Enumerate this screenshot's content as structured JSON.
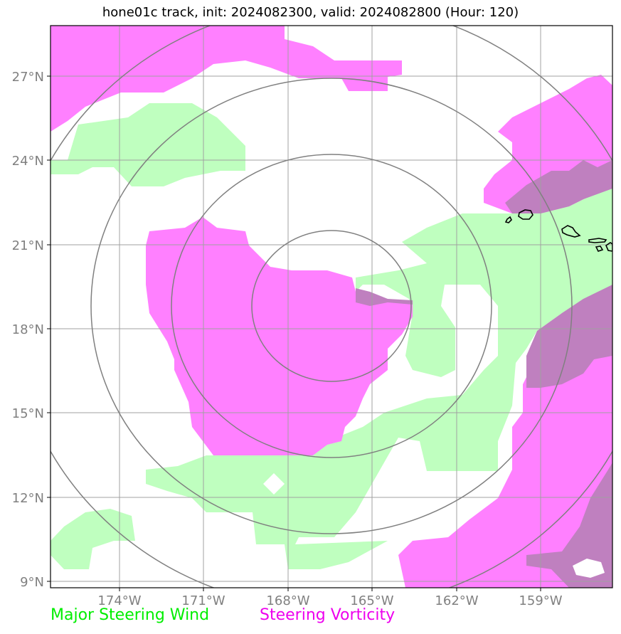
{
  "title": "hone01c track, init: 2024082300, valid: 2024082800 (Hour: 120)",
  "map": {
    "lon_range": [
      -176.4,
      -156.4
    ],
    "lat_range": [
      8.8,
      28.8
    ],
    "lon_ticks": [
      -174,
      -171,
      -168,
      -165,
      -162,
      -159
    ],
    "lat_ticks": [
      9,
      12,
      15,
      18,
      21,
      24,
      27
    ],
    "lon_tick_labels": [
      "174°W",
      "171°W",
      "168°W",
      "165°W",
      "162°W",
      "159°W"
    ],
    "lat_tick_labels": [
      "9°N",
      "12°N",
      "15°N",
      "18°N",
      "21°N",
      "24°N",
      "27°N"
    ],
    "center": {
      "lon": -166.4,
      "lat": 18.9
    },
    "range_ring_radii_deg": [
      2.7,
      5.7,
      8.6,
      11.7
    ],
    "colors": {
      "steering_wind": "#bfffbf",
      "steering_vorticity": "#ff80ff",
      "overlap": "#bf80bf",
      "gridline": "#a0a0a0",
      "ring": "#808080",
      "coastline": "#000000"
    }
  },
  "legend": {
    "wind_label": "Major Steering Wind",
    "vorticity_label": "Steering Vorticity",
    "wind_color": "#00ee00",
    "vorticity_color": "#ee00ee"
  }
}
